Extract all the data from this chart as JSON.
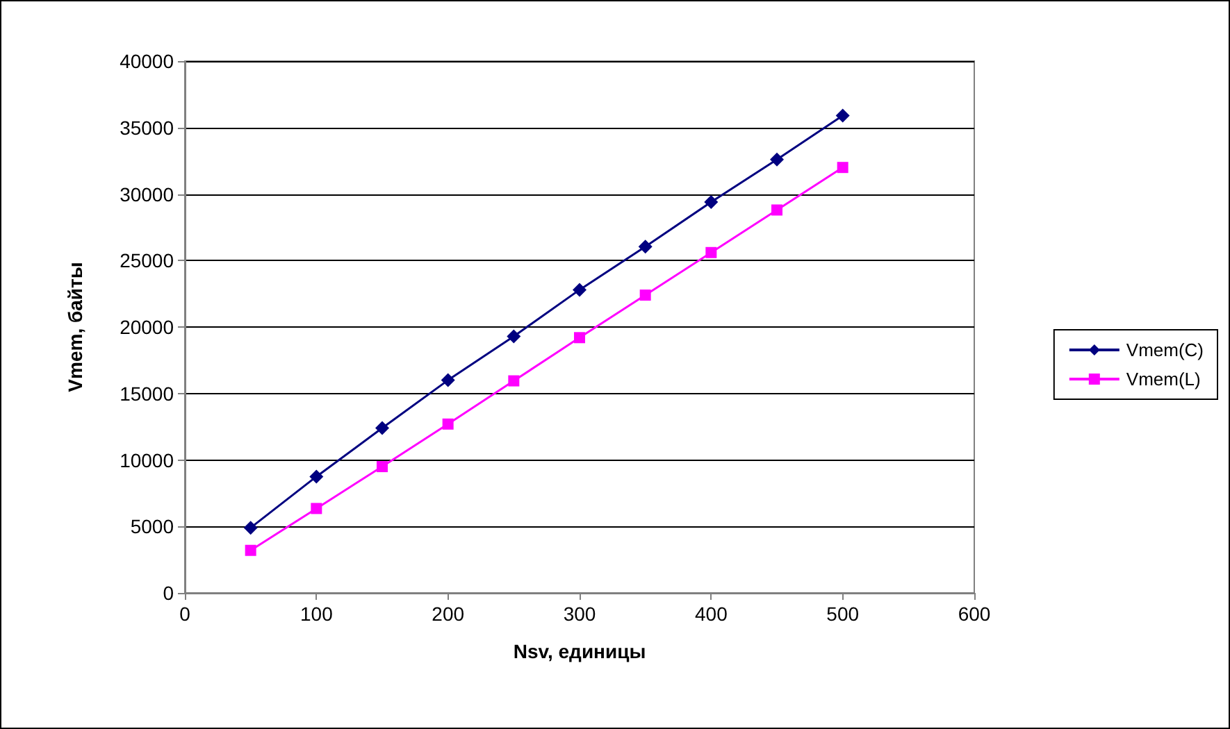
{
  "chart_data": {
    "type": "line",
    "xlabel": "Nsv, единицы",
    "ylabel": "Vmem, байты",
    "x": [
      50,
      100,
      150,
      200,
      250,
      300,
      350,
      400,
      450,
      500
    ],
    "series": [
      {
        "name": "Vmem(C)",
        "color": "#000080",
        "marker": "diamond",
        "values": [
          4900,
          8750,
          12400,
          16000,
          19300,
          22800,
          26050,
          29400,
          32600,
          35900
        ]
      },
      {
        "name": "Vmem(L)",
        "color": "#ff00ff",
        "marker": "square",
        "values": [
          3200,
          6350,
          9500,
          12700,
          15950,
          19200,
          22400,
          25600,
          28800,
          32000
        ]
      }
    ],
    "xlim": [
      0,
      600
    ],
    "xticks": [
      0,
      100,
      200,
      300,
      400,
      500,
      600
    ],
    "ylim": [
      0,
      40000
    ],
    "yticks": [
      0,
      5000,
      10000,
      15000,
      20000,
      25000,
      30000,
      35000,
      40000
    ],
    "grid": "y",
    "legend": "right"
  }
}
